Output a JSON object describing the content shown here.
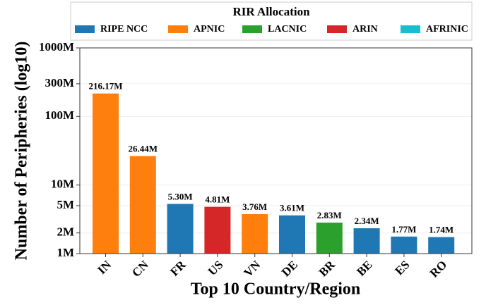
{
  "chart_data": {
    "type": "bar",
    "x_label": "Top 10 Country/Region",
    "y_label": "Number of Peripheries (log10)",
    "categories": [
      "IN",
      "CN",
      "FR",
      "US",
      "VN",
      "DE",
      "BR",
      "BE",
      "ES",
      "RO"
    ],
    "values": [
      216.17,
      26.44,
      5.3,
      4.81,
      3.76,
      3.61,
      2.83,
      2.34,
      1.77,
      1.74
    ],
    "value_labels": [
      "216.17M",
      "26.44M",
      "5.30M",
      "4.81M",
      "3.76M",
      "3.61M",
      "2.83M",
      "2.34M",
      "1.77M",
      "1.74M"
    ],
    "colors": [
      "#ff7f0e",
      "#ff7f0e",
      "#1f77b4",
      "#d62728",
      "#ff7f0e",
      "#1f77b4",
      "#2ca02c",
      "#1f77b4",
      "#1f77b4",
      "#1f77b4"
    ],
    "ylim": [
      1,
      1000
    ],
    "log_y": true,
    "grid": true,
    "yticks": [
      {
        "value": 1,
        "label": "1M"
      },
      {
        "value": 2,
        "label": "2M"
      },
      {
        "value": 5,
        "label": "5M"
      },
      {
        "value": 10,
        "label": "10M"
      },
      {
        "value": 100,
        "label": "100M"
      },
      {
        "value": 300,
        "label": "300M"
      },
      {
        "value": 1000,
        "label": "1000M"
      }
    ],
    "legend": {
      "title": "RIR Allocation",
      "position": "top",
      "entries": [
        {
          "name": "RIPE NCC",
          "color": "#1f77b4"
        },
        {
          "name": "APNIC",
          "color": "#ff7f0e"
        },
        {
          "name": "LACNIC",
          "color": "#2ca02c"
        },
        {
          "name": "ARIN",
          "color": "#d62728"
        },
        {
          "name": "AFRINIC",
          "color": "#17becf"
        }
      ]
    }
  }
}
